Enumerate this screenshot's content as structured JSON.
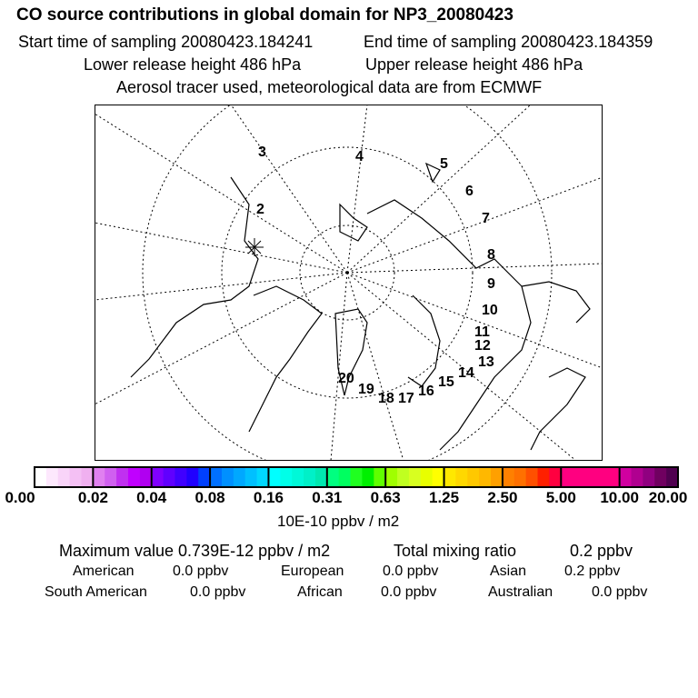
{
  "chart_data": {
    "type": "heatmap",
    "title": "CO  source contributions in global domain for NP3_20080423",
    "subtitle_lines": [
      [
        "Start time of sampling 20080423.184241",
        "End time of sampling 20080423.184359"
      ],
      [
        "Lower release height  486 hPa",
        "Upper release height  486 hPa"
      ],
      [
        "Aerosol tracer used, meteorological data are from ECMWF"
      ]
    ],
    "colorbar": {
      "ticks": [
        "0.00",
        "0.02",
        "0.04",
        "0.08",
        "0.16",
        "0.31",
        "0.63",
        "1.25",
        "2.50",
        "5.00",
        "10.00",
        "20.00"
      ],
      "unit": "10E-10 ppbv / m2",
      "colors": [
        [
          "#ffffff",
          "#fde8fd",
          "#f9d4f9",
          "#f4c0f4",
          "#f0b0f0"
        ],
        [
          "#e080f0",
          "#d060f0",
          "#c030f0",
          "#c000ff",
          "#b000f0"
        ],
        [
          "#8000ff",
          "#6000ff",
          "#4000ff",
          "#2000ff",
          "#0040ff"
        ],
        [
          "#0070ff",
          "#0090ff",
          "#00a8ff",
          "#00c0ff",
          "#00d8ff"
        ],
        [
          "#00ffff",
          "#00ffe8",
          "#00f8d8",
          "#00f0c8",
          "#00e8b0"
        ],
        [
          "#00ff80",
          "#00ff60",
          "#20ff20",
          "#00f000",
          "#60ff00"
        ],
        [
          "#a0ff00",
          "#c0ff20",
          "#d8ff20",
          "#e8ff00",
          "#ffff00"
        ],
        [
          "#ffe800",
          "#ffd800",
          "#ffc800",
          "#ffb800",
          "#ffa000"
        ],
        [
          "#ff8000",
          "#ff7000",
          "#ff5000",
          "#ff2000",
          "#ff0040"
        ],
        [
          "#ff0080",
          "#ff0080",
          "#ff0080",
          "#ff0080",
          "#ff0080"
        ],
        [
          "#d000a0",
          "#b00090",
          "#900080",
          "#700060",
          "#500050"
        ]
      ]
    },
    "trajectory_labels": [
      "2",
      "3",
      "4",
      "5",
      "6",
      "7",
      "8",
      "9",
      "10",
      "11",
      "12",
      "13",
      "14",
      "15",
      "16",
      "17",
      "18",
      "19",
      "20"
    ]
  },
  "summary": {
    "max_label": "Maximum value  0.739E-12 ppbv / m2",
    "total_label": "Total mixing ratio",
    "total_value": "0.2 ppbv",
    "regions": [
      {
        "name": "American",
        "value": "0.0 ppbv"
      },
      {
        "name": "European",
        "value": "0.0 ppbv"
      },
      {
        "name": "Asian",
        "value": "0.2 ppbv"
      },
      {
        "name": "South American",
        "value": "0.0 ppbv"
      },
      {
        "name": "African",
        "value": "0.0 ppbv"
      },
      {
        "name": "Australian",
        "value": "0.0 ppbv"
      }
    ]
  }
}
